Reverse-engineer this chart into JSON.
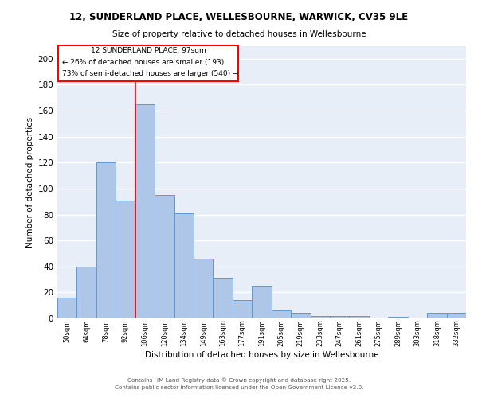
{
  "title1": "12, SUNDERLAND PLACE, WELLESBOURNE, WARWICK, CV35 9LE",
  "title2": "Size of property relative to detached houses in Wellesbourne",
  "xlabel": "Distribution of detached houses by size in Wellesbourne",
  "ylabel": "Number of detached properties",
  "categories": [
    "50sqm",
    "64sqm",
    "78sqm",
    "92sqm",
    "106sqm",
    "120sqm",
    "134sqm",
    "149sqm",
    "163sqm",
    "177sqm",
    "191sqm",
    "205sqm",
    "219sqm",
    "233sqm",
    "247sqm",
    "261sqm",
    "275sqm",
    "289sqm",
    "303sqm",
    "318sqm",
    "332sqm"
  ],
  "values": [
    16,
    40,
    120,
    91,
    165,
    95,
    81,
    46,
    31,
    14,
    25,
    6,
    4,
    2,
    2,
    2,
    0,
    1,
    0,
    4,
    4
  ],
  "bar_color": "#aec6e8",
  "bar_edge_color": "#5b9bd5",
  "background_color": "#e8eef7",
  "grid_color": "#ffffff",
  "property_index": 3,
  "annotation_text1": "12 SUNDERLAND PLACE: 97sqm",
  "annotation_text2": "← 26% of detached houses are smaller (193)",
  "annotation_text3": "73% of semi-detached houses are larger (540) →",
  "ylim": [
    0,
    210
  ],
  "yticks": [
    0,
    20,
    40,
    60,
    80,
    100,
    120,
    140,
    160,
    180,
    200
  ],
  "footer1": "Contains HM Land Registry data © Crown copyright and database right 2025.",
  "footer2": "Contains public sector information licensed under the Open Government Licence v3.0."
}
